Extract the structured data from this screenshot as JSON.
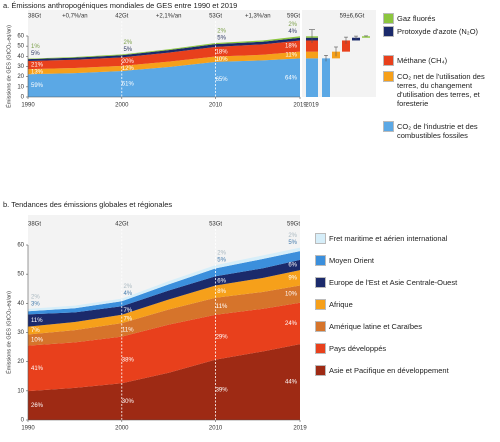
{
  "chart_data": [
    {
      "type": "area",
      "title": "a. Émissions anthropogéniques mondiales de GES entre 1990 et 2019",
      "y_label": "Émissions de GES (GtCO₂-eq/an)",
      "x": [
        1990,
        1995,
        2000,
        2005,
        2010,
        2015,
        2019
      ],
      "xlim": [
        1990,
        2019
      ],
      "xticks": [
        1990,
        2000,
        2010,
        2019
      ],
      "ylim": [
        0,
        60
      ],
      "yticks": [
        0,
        10,
        20,
        30,
        40,
        50,
        60
      ],
      "series": [
        {
          "name": "CO₂ de l'industrie et des combustibles fossiles",
          "color": "#5ba8e5",
          "values": [
            22.4,
            23.5,
            25.6,
            29.5,
            34.5,
            36,
            38
          ],
          "shares": [
            {
              "value": 59,
              "label": "59%"
            },
            null,
            {
              "value": 61,
              "label": "61%"
            },
            null,
            {
              "value": 65,
              "label": "65%"
            },
            null,
            {
              "value": 64,
              "label": "64%"
            }
          ],
          "uncertainty": 3
        },
        {
          "name": "CO₂ net de l'utilisation des terres, du changement d'utilisation des terres, et foresterie",
          "color": "#f6a01a",
          "values": [
            5.0,
            5.0,
            5.0,
            5.3,
            5.3,
            5.5,
            6.6
          ],
          "shares": [
            {
              "value": 13,
              "label": "13%"
            },
            null,
            {
              "value": 12,
              "label": "12%"
            },
            null,
            {
              "value": 10,
              "label": "10%"
            },
            null,
            {
              "value": 11,
              "label": "11%"
            }
          ],
          "uncertainty": 4.6
        },
        {
          "name": "Méthane (CH₄)",
          "color": "#e8401c",
          "values": [
            8.0,
            8.2,
            8.4,
            8.9,
            9.5,
            10.3,
            11
          ],
          "shares": [
            {
              "value": 21,
              "label": "21%"
            },
            null,
            {
              "value": 20,
              "label": "20%"
            },
            null,
            {
              "value": 18,
              "label": "18%"
            },
            null,
            {
              "value": 18,
              "label": "18%"
            }
          ],
          "uncertainty": 3.3
        },
        {
          "name": "Protoxyde d'azote (N₂O)",
          "color": "#1b2a6b",
          "values": [
            1.9,
            2.0,
            2.1,
            2.4,
            2.7,
            2.6,
            2.7
          ],
          "shares": [
            {
              "value": 5,
              "label": "5%"
            },
            null,
            {
              "value": 5,
              "label": "5%"
            },
            null,
            {
              "value": 5,
              "label": "5%"
            },
            null,
            {
              "value": 4,
              "label": "4%"
            }
          ],
          "uncertainty": 1.6
        },
        {
          "name": "Gaz fluorés",
          "color": "#8cc63e",
          "values": [
            0.4,
            0.6,
            0.8,
            0.9,
            1.1,
            1.2,
            1.4
          ],
          "shares": [
            {
              "value": 1,
              "label": "1%"
            },
            null,
            {
              "value": 2,
              "label": "2%"
            },
            null,
            {
              "value": 2,
              "label": "2%"
            },
            null,
            {
              "value": 2,
              "label": "2%"
            }
          ],
          "uncertainty": 0.4
        }
      ],
      "totals": [
        {
          "value": 38,
          "label": "38Gt"
        },
        {
          "value": 42,
          "label": "42Gt"
        },
        {
          "value": 53,
          "label": "53Gt"
        },
        {
          "value": 59,
          "label": "59Gt"
        }
      ],
      "growth": [
        "+0,7%/an",
        "+2,1%/an",
        "+1,3%/an"
      ],
      "bar_category": "2019",
      "total_uncertainty": 6.6,
      "total_uncertainty_label": "59±6,6Gt"
    },
    {
      "type": "area",
      "title": "b. Tendances des émissions globales et régionales",
      "y_label": "Émissions de GES (GtCO₂-eq/an)",
      "x": [
        1990,
        1995,
        2000,
        2005,
        2010,
        2015,
        2019
      ],
      "xlim": [
        1990,
        2019
      ],
      "xticks": [
        1990,
        2000,
        2010,
        2019
      ],
      "ylim": [
        0,
        60
      ],
      "yticks": [
        0,
        10,
        20,
        30,
        40,
        50,
        60
      ],
      "series": [
        {
          "name": "Asie et Pacifique en développement",
          "color": "#9e2a14",
          "values": [
            9.9,
            11,
            12.6,
            16.2,
            20.7,
            23.5,
            26
          ],
          "shares": [
            {
              "value": 26,
              "label": "26%"
            },
            null,
            {
              "value": 30,
              "label": "30%"
            },
            null,
            {
              "value": 39,
              "label": "39%"
            },
            null,
            {
              "value": 44,
              "label": "44%"
            }
          ]
        },
        {
          "name": "Pays développés",
          "color": "#e8401c",
          "values": [
            15.6,
            15.6,
            16.0,
            16.5,
            15.4,
            14.6,
            14.2
          ],
          "shares": [
            {
              "value": 41,
              "label": "41%"
            },
            null,
            {
              "value": 38,
              "label": "38%"
            },
            null,
            {
              "value": 29,
              "label": "29%"
            },
            null,
            {
              "value": 24,
              "label": "24%"
            }
          ]
        },
        {
          "name": "Amérique latine et Caraïbes",
          "color": "#d6742b",
          "values": [
            3.8,
            4.2,
            4.6,
            5.2,
            5.8,
            5.8,
            5.9
          ],
          "shares": [
            {
              "value": 10,
              "label": "10%"
            },
            null,
            {
              "value": 11,
              "label": "11%"
            },
            null,
            {
              "value": 11,
              "label": "11%"
            },
            null,
            {
              "value": 10,
              "label": "10%"
            }
          ]
        },
        {
          "name": "Afrique",
          "color": "#f6a01a",
          "values": [
            2.7,
            2.8,
            2.9,
            3.4,
            4.2,
            4.8,
            5.3
          ],
          "shares": [
            {
              "value": 7,
              "label": "7%"
            },
            null,
            {
              "value": 7,
              "label": "7%"
            },
            null,
            {
              "value": 8,
              "label": "8%"
            },
            null,
            {
              "value": 9,
              "label": "9%"
            }
          ]
        },
        {
          "name": "Europe de l'Est et Asie Centrale-Ouest",
          "color": "#1b2a6b",
          "values": [
            4.2,
            3.3,
            2.9,
            3.1,
            3.2,
            3.3,
            3.5
          ],
          "shares": [
            {
              "value": 11,
              "label": "11%"
            },
            null,
            {
              "value": 7,
              "label": "7%"
            },
            null,
            {
              "value": 6,
              "label": "6%"
            },
            null,
            {
              "value": 6,
              "label": "6%"
            }
          ]
        },
        {
          "name": "Moyen Orient",
          "color": "#3b8fdc",
          "values": [
            1.1,
            1.4,
            1.7,
            2.1,
            2.7,
            3.2,
            3.0
          ],
          "shares": [
            {
              "value": 3,
              "label": "3%"
            },
            null,
            {
              "value": 4,
              "label": "4%"
            },
            null,
            {
              "value": 5,
              "label": "5%"
            },
            null,
            {
              "value": 5,
              "label": "5%"
            }
          ]
        },
        {
          "name": "Fret maritime et aérien international",
          "color": "#d6eef9",
          "values": [
            0.8,
            0.9,
            0.9,
            1.1,
            1.1,
            1.2,
            1.2
          ],
          "shares": [
            {
              "value": 2,
              "label": "2%"
            },
            null,
            {
              "value": 2,
              "label": "2%"
            },
            null,
            {
              "value": 2,
              "label": "2%"
            },
            null,
            {
              "value": 2,
              "label": "2%"
            }
          ]
        }
      ],
      "totals": [
        {
          "value": 38,
          "label": "38Gt"
        },
        {
          "value": 42,
          "label": "42Gt"
        },
        {
          "value": 53,
          "label": "53Gt"
        },
        {
          "value": 59,
          "label": "59Gt"
        }
      ]
    }
  ]
}
